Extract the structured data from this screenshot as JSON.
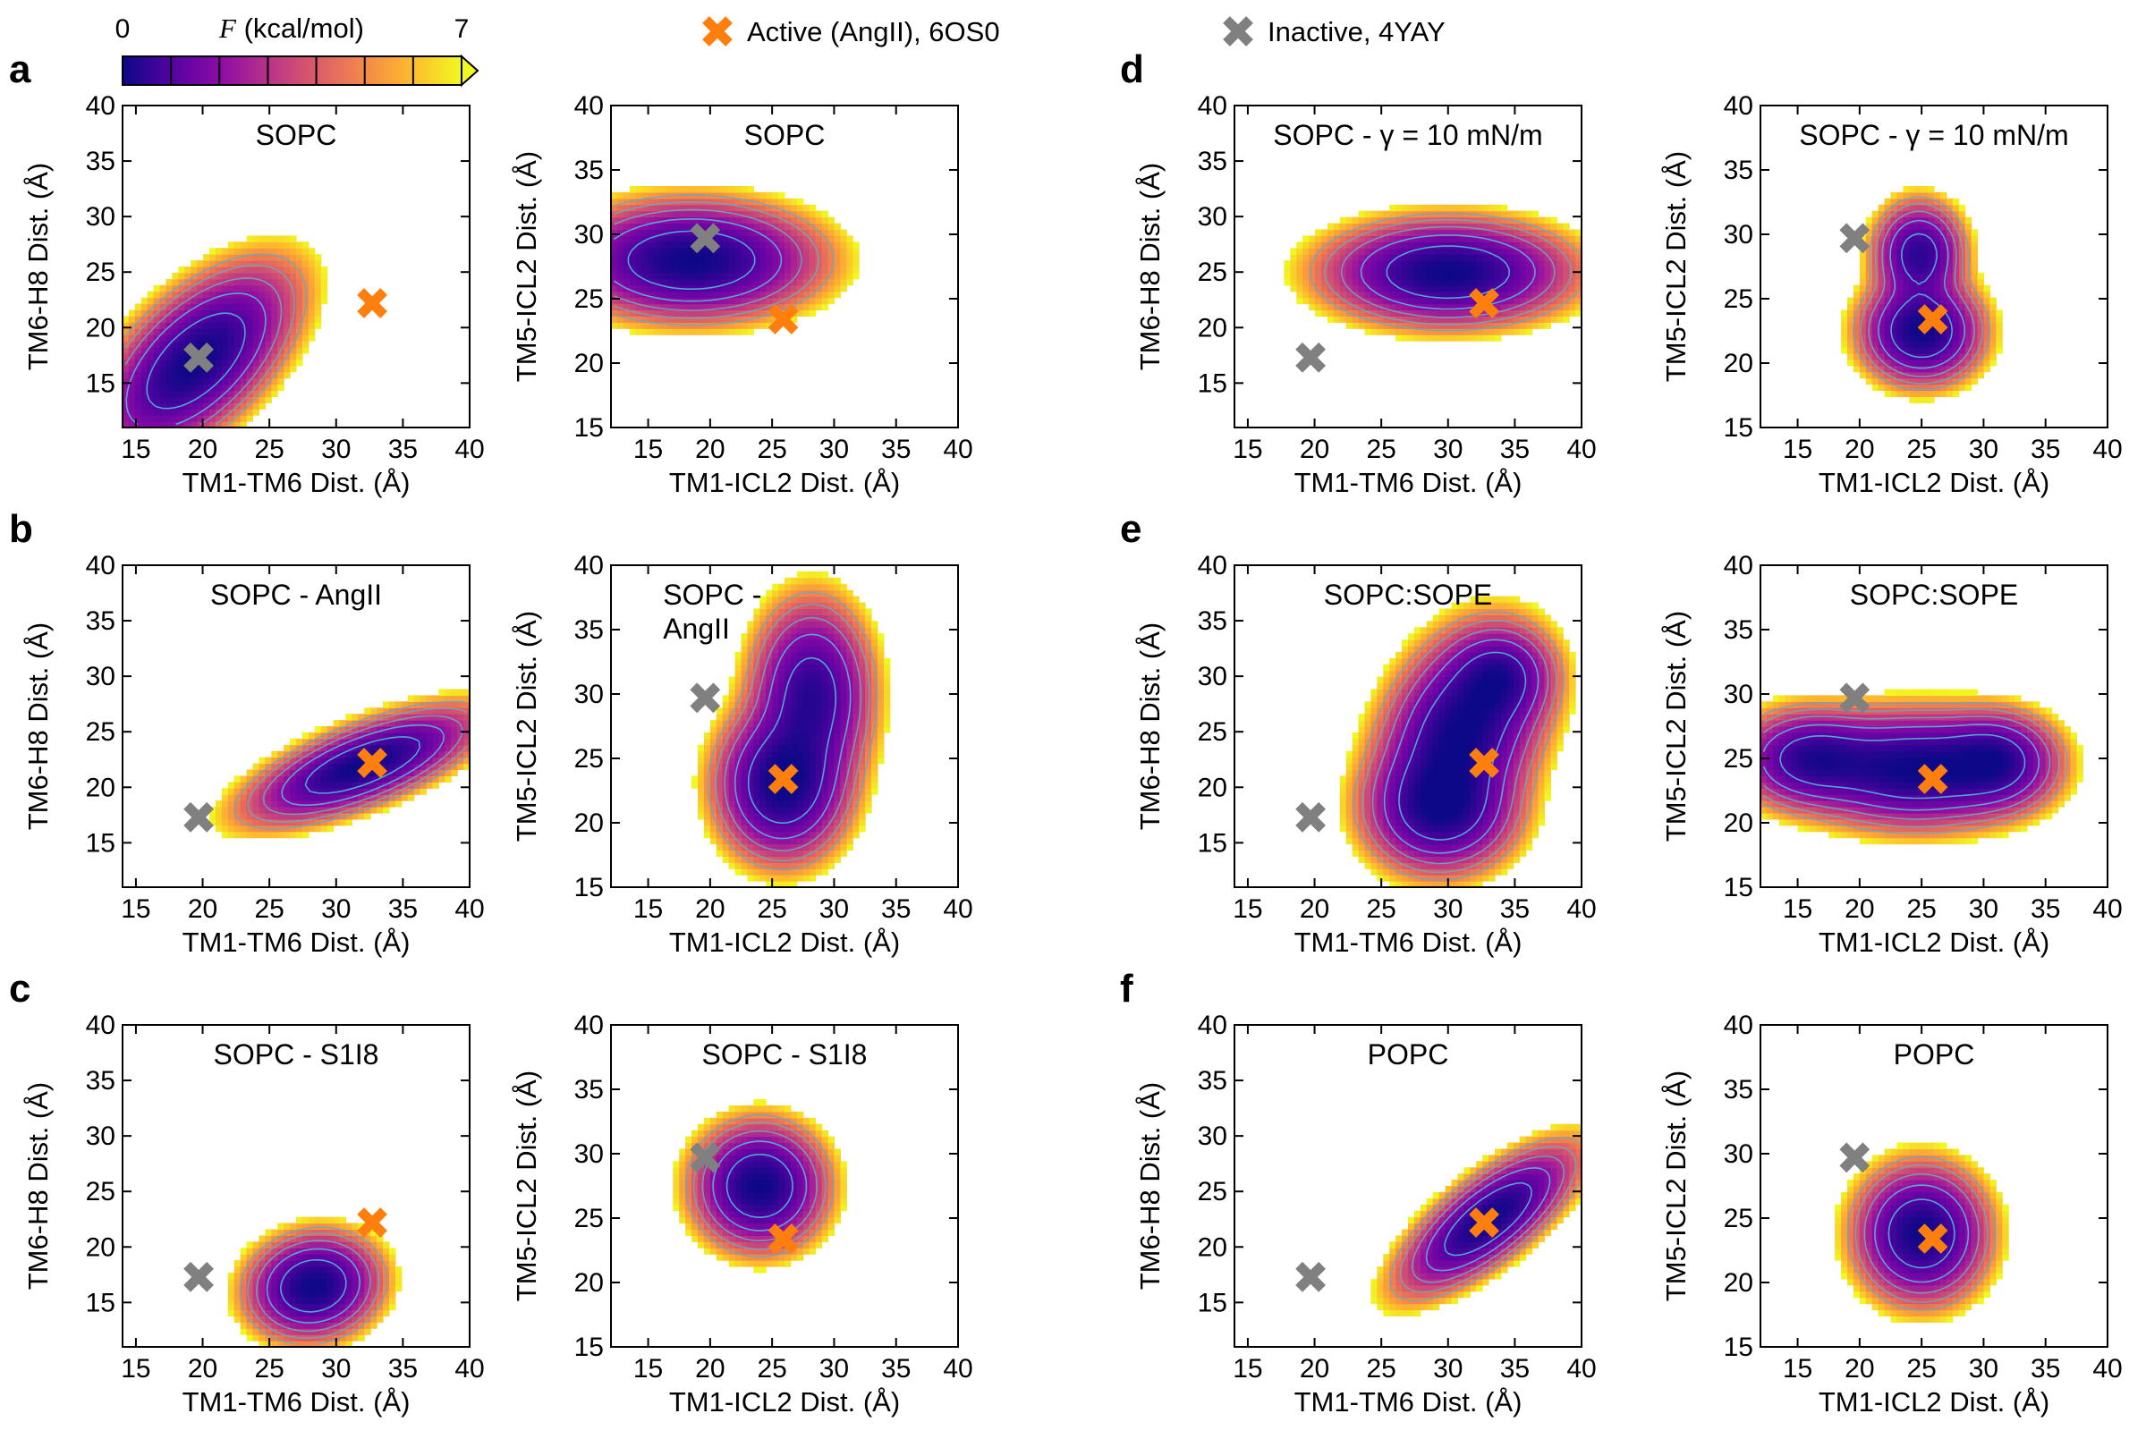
{
  "colorbar": {
    "min_label": "0",
    "max_label": "7",
    "label_prefix": "F",
    "label_units": " (kcal/mol)",
    "colormap": "plasma",
    "levels": 7
  },
  "legend": [
    {
      "name": "Active (AngII), 6OS0",
      "color": "#ff7f0e"
    },
    {
      "name": "Inactive, 4YAY",
      "color": "#808080"
    }
  ],
  "chart_data": [
    {
      "id": "a-left",
      "letter": "a",
      "type": "heatmap",
      "title": "SOPC",
      "xlabel": "TM1-TM6 Dist. (Å)",
      "ylabel": "TM6-H8 Dist. (Å)",
      "xlim": [
        14,
        40
      ],
      "ylim": [
        11,
        40
      ],
      "xticks": [
        15,
        20,
        25,
        30,
        35,
        40
      ],
      "yticks": [
        15,
        20,
        25,
        30,
        35,
        40
      ],
      "basins": [
        {
          "x": 19.5,
          "y": 17.0,
          "sx": 3.6,
          "sy": 4.2,
          "rho": 0.6,
          "w": 1.0
        }
      ],
      "active_marker": [
        32.7,
        22.2
      ],
      "inactive_marker": [
        19.7,
        17.3
      ]
    },
    {
      "id": "a-right",
      "type": "heatmap",
      "title": "SOPC",
      "xlabel": "TM1-ICL2 Dist. (Å)",
      "ylabel": "TM5-ICL2 Dist. (Å)",
      "xlim": [
        12,
        40
      ],
      "ylim": [
        15,
        40
      ],
      "xticks": [
        15,
        20,
        25,
        30,
        35,
        40
      ],
      "yticks": [
        15,
        20,
        25,
        30,
        35,
        40
      ],
      "basins": [
        {
          "x": 18.5,
          "y": 28.0,
          "sx": 5.0,
          "sy": 2.2,
          "rho": 0.0,
          "w": 1.0
        }
      ],
      "active_marker": [
        25.9,
        23.4
      ],
      "inactive_marker": [
        19.6,
        29.7
      ]
    },
    {
      "id": "b-left",
      "letter": "b",
      "type": "heatmap",
      "title": "SOPC - AngII",
      "xlabel": "TM1-TM6 Dist. (Å)",
      "ylabel": "TM6-H8 Dist. (Å)",
      "xlim": [
        14,
        40
      ],
      "ylim": [
        11,
        40
      ],
      "xticks": [
        15,
        20,
        25,
        30,
        35,
        40
      ],
      "yticks": [
        15,
        20,
        25,
        30,
        35,
        40
      ],
      "basins": [
        {
          "x": 32.0,
          "y": 22.0,
          "sx": 4.2,
          "sy": 2.5,
          "rho": 0.7,
          "w": 1.0
        }
      ],
      "active_marker": [
        32.7,
        22.2
      ],
      "inactive_marker": [
        19.7,
        17.3
      ]
    },
    {
      "id": "b-right",
      "type": "heatmap",
      "title": "SOPC - AngII",
      "xlabel": "TM1-ICL2 Dist. (Å)",
      "ylabel": "TM5-ICL2 Dist. (Å)",
      "xlim": [
        12,
        40
      ],
      "ylim": [
        15,
        40
      ],
      "xticks": [
        15,
        20,
        25,
        30,
        35,
        40
      ],
      "yticks": [
        15,
        20,
        25,
        30,
        35,
        40
      ],
      "basins": [
        {
          "x": 25.8,
          "y": 23.0,
          "sx": 2.6,
          "sy": 2.9,
          "rho": 0.0,
          "w": 1.0
        },
        {
          "x": 28.2,
          "y": 30.0,
          "sx": 2.4,
          "sy": 3.6,
          "rho": 0.0,
          "w": 0.8
        }
      ],
      "active_marker": [
        25.9,
        23.4
      ],
      "inactive_marker": [
        19.6,
        29.7
      ]
    },
    {
      "id": "c-left",
      "letter": "c",
      "type": "heatmap",
      "title": "SOPC - S1I8",
      "xlabel": "TM1-TM6 Dist. (Å)",
      "ylabel": "TM6-H8 Dist. (Å)",
      "xlim": [
        14,
        40
      ],
      "ylim": [
        11,
        40
      ],
      "xticks": [
        15,
        20,
        25,
        30,
        35,
        40
      ],
      "yticks": [
        15,
        20,
        25,
        30,
        35,
        40
      ],
      "basins": [
        {
          "x": 28.3,
          "y": 16.5,
          "sx": 2.4,
          "sy": 2.3,
          "rho": 0.1,
          "w": 1.0
        }
      ],
      "active_marker": [
        32.7,
        22.2
      ],
      "inactive_marker": [
        19.7,
        17.3
      ]
    },
    {
      "id": "c-right",
      "type": "heatmap",
      "title": "SOPC - S1I8",
      "xlabel": "TM1-ICL2 Dist. (Å)",
      "ylabel": "TM5-ICL2 Dist. (Å)",
      "xlim": [
        12,
        40
      ],
      "ylim": [
        15,
        40
      ],
      "xticks": [
        15,
        20,
        25,
        30,
        35,
        40
      ],
      "yticks": [
        15,
        20,
        25,
        30,
        35,
        40
      ],
      "basins": [
        {
          "x": 24.0,
          "y": 27.5,
          "sx": 2.6,
          "sy": 2.4,
          "rho": 0.0,
          "w": 1.0
        }
      ],
      "active_marker": [
        25.9,
        23.4
      ],
      "inactive_marker": [
        19.6,
        29.7
      ]
    },
    {
      "id": "d-left",
      "letter": "d",
      "type": "heatmap",
      "title": "SOPC - γ = 10 mN/m",
      "xlabel": "TM1-TM6 Dist. (Å)",
      "ylabel": "TM6-H8 Dist. (Å)",
      "xlim": [
        14,
        40
      ],
      "ylim": [
        11,
        40
      ],
      "xticks": [
        15,
        20,
        25,
        30,
        35,
        40
      ],
      "yticks": [
        15,
        20,
        25,
        30,
        35,
        40
      ],
      "basins": [
        {
          "x": 30.0,
          "y": 25.0,
          "sx": 4.5,
          "sy": 2.3,
          "rho": 0.0,
          "w": 1.0
        }
      ],
      "active_marker": [
        32.7,
        22.2
      ],
      "inactive_marker": [
        19.7,
        17.3
      ]
    },
    {
      "id": "d-right",
      "type": "heatmap",
      "title": "SOPC - γ = 10 mN/m",
      "xlabel": "TM1-ICL2 Dist. (Å)",
      "ylabel": "TM5-ICL2 Dist. (Å)",
      "xlim": [
        12,
        40
      ],
      "ylim": [
        15,
        40
      ],
      "xticks": [
        15,
        20,
        25,
        30,
        35,
        40
      ],
      "yticks": [
        15,
        20,
        25,
        30,
        35,
        40
      ],
      "basins": [
        {
          "x": 25.0,
          "y": 22.5,
          "sx": 2.4,
          "sy": 2.0,
          "rho": 0.0,
          "w": 1.0
        },
        {
          "x": 24.8,
          "y": 28.5,
          "sx": 1.8,
          "sy": 2.0,
          "rho": 0.0,
          "w": 0.8
        }
      ],
      "active_marker": [
        25.9,
        23.4
      ],
      "inactive_marker": [
        19.6,
        29.7
      ]
    },
    {
      "id": "e-left",
      "letter": "e",
      "type": "heatmap",
      "title": "SOPC:SOPE",
      "xlabel": "TM1-TM6 Dist. (Å)",
      "ylabel": "TM6-H8 Dist. (Å)",
      "xlim": [
        14,
        40
      ],
      "ylim": [
        11,
        40
      ],
      "xticks": [
        15,
        20,
        25,
        30,
        35,
        40
      ],
      "yticks": [
        15,
        20,
        25,
        30,
        35,
        40
      ],
      "basins": [
        {
          "x": 31.0,
          "y": 25.0,
          "sx": 3.0,
          "sy": 4.5,
          "rho": 0.3,
          "w": 1.0
        },
        {
          "x": 29.5,
          "y": 18.0,
          "sx": 2.8,
          "sy": 2.8,
          "rho": 0.0,
          "w": 0.8
        },
        {
          "x": 34.0,
          "y": 30.0,
          "sx": 2.0,
          "sy": 2.2,
          "rho": 0.0,
          "w": 0.55
        }
      ],
      "active_marker": [
        32.7,
        22.2
      ],
      "inactive_marker": [
        19.7,
        17.3
      ]
    },
    {
      "id": "e-right",
      "type": "heatmap",
      "title": "SOPC:SOPE",
      "xlabel": "TM1-ICL2 Dist. (Å)",
      "ylabel": "TM5-ICL2 Dist. (Å)",
      "xlim": [
        12,
        40
      ],
      "ylim": [
        15,
        40
      ],
      "xticks": [
        15,
        20,
        25,
        30,
        35,
        40
      ],
      "yticks": [
        15,
        20,
        25,
        30,
        35,
        40
      ],
      "basins": [
        {
          "x": 24.5,
          "y": 24.2,
          "sx": 4.5,
          "sy": 2.2,
          "rho": 0.0,
          "w": 1.0
        },
        {
          "x": 16.0,
          "y": 25.0,
          "sx": 3.0,
          "sy": 1.9,
          "rho": 0.0,
          "w": 0.75
        },
        {
          "x": 31.0,
          "y": 24.8,
          "sx": 2.5,
          "sy": 1.9,
          "rho": 0.0,
          "w": 0.7
        }
      ],
      "active_marker": [
        25.9,
        23.4
      ],
      "inactive_marker": [
        19.6,
        29.7
      ]
    },
    {
      "id": "f-left",
      "letter": "f",
      "type": "heatmap",
      "title": "POPC",
      "xlabel": "TM1-TM6 Dist. (Å)",
      "ylabel": "TM6-H8 Dist. (Å)",
      "xlim": [
        14,
        40
      ],
      "ylim": [
        11,
        40
      ],
      "xticks": [
        15,
        20,
        25,
        30,
        35,
        40
      ],
      "yticks": [
        15,
        20,
        25,
        30,
        35,
        40
      ],
      "basins": [
        {
          "x": 33.0,
          "y": 22.5,
          "sx": 3.2,
          "sy": 3.2,
          "rho": 0.75,
          "w": 1.0
        }
      ],
      "active_marker": [
        32.7,
        22.2
      ],
      "inactive_marker": [
        19.7,
        17.3
      ]
    },
    {
      "id": "f-right",
      "type": "heatmap",
      "title": "POPC",
      "xlabel": "TM1-ICL2 Dist. (Å)",
      "ylabel": "TM5-ICL2 Dist. (Å)",
      "xlim": [
        12,
        40
      ],
      "ylim": [
        15,
        40
      ],
      "xticks": [
        15,
        20,
        25,
        30,
        35,
        40
      ],
      "yticks": [
        15,
        20,
        25,
        30,
        35,
        40
      ],
      "basins": [
        {
          "x": 25.0,
          "y": 23.8,
          "sx": 2.6,
          "sy": 2.6,
          "rho": 0.0,
          "w": 1.0
        }
      ],
      "active_marker": [
        25.9,
        23.4
      ],
      "inactive_marker": [
        19.6,
        29.7
      ]
    }
  ]
}
